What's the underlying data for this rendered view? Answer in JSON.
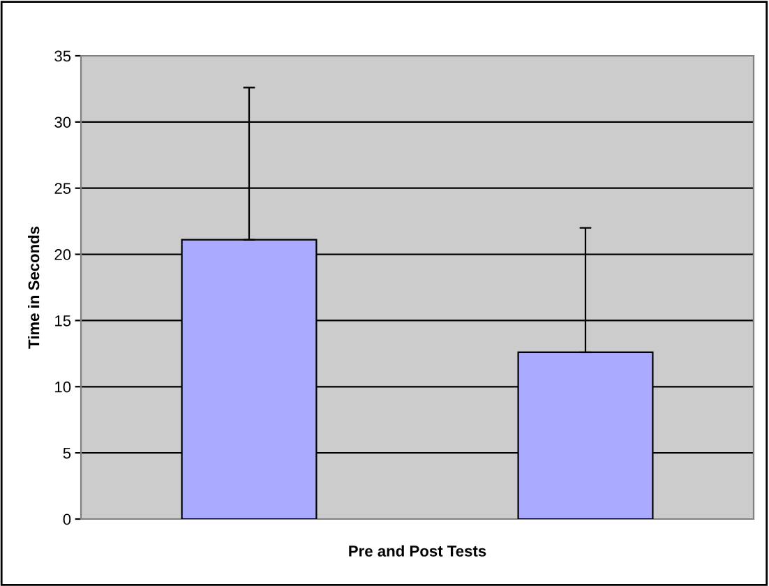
{
  "chart_data": {
    "type": "bar",
    "xlabel": "Pre and Post Tests",
    "ylabel": "Time in Seconds",
    "categories": [
      null,
      null
    ],
    "values": [
      21.1,
      12.6
    ],
    "errors": [
      [
        21.1,
        32.6
      ],
      [
        12.6,
        22.0
      ]
    ],
    "color": "#aaaaff",
    "ylim": [
      0,
      35
    ],
    "yticks": [
      0,
      5,
      10,
      15,
      20,
      25,
      30,
      35
    ],
    "grid": "y"
  }
}
